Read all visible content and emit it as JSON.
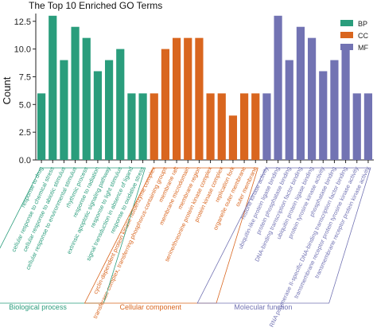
{
  "chart_data": {
    "type": "bar",
    "title": "The Top 10 Enriched GO Terms",
    "ylabel": "Count",
    "xlabel": "",
    "ylim": [
      0,
      13.2
    ],
    "yticks": [
      "0.0",
      "2.5",
      "5.0",
      "7.5",
      "10.0",
      "12.5"
    ],
    "ytick_values": [
      0,
      2.5,
      5,
      7.5,
      10,
      12.5
    ],
    "legend_position": "top-right",
    "colors": {
      "BP": "#2a9d7c",
      "CC": "#d9661f",
      "MF": "#7273b3"
    },
    "series": [
      {
        "name": "BP",
        "group_label": "Biological process",
        "categories": [
          "response to drug",
          "cellular response to chemical stress",
          "cellular response to abiotic stimulus",
          "cellular response to environmental stimulus",
          "rhythmic process",
          "response to radiation",
          "extrinsic apoptotic signaling pathway",
          "response to light stimulus",
          "signal transduction in absence of ligand",
          "response to oxidative stress"
        ],
        "values": [
          6,
          13,
          9,
          12,
          11,
          8,
          9,
          10,
          6,
          6
        ]
      },
      {
        "name": "CC",
        "group_label": "Cellular component",
        "categories": [
          "cyclin-dependent protein kinase holoenzyme complex",
          "transferase complex, transferring phosphorus-containing groups",
          "membrane raft",
          "membrane microdomain",
          "membrane region",
          "serine/threonine protein kinase complex",
          "protein kinase complex",
          "replication fork",
          "organelle outer membrane",
          "outer membrane"
        ],
        "values": [
          6,
          10,
          11,
          11,
          11,
          6,
          6,
          4,
          6,
          6
        ]
      },
      {
        "name": "MF",
        "group_label": "Molecular function",
        "categories": [
          "histone kinase activity",
          "ubiquitin-like protein ligase binding",
          "protein phosphatase binding",
          "DNA-binding transcription factor binding",
          "ubiquitin protein ligase binding",
          "protein tyrosine kinase activity",
          "phosphatase binding",
          "RNA polymerase II-specific DNA-binding transcription factor binding",
          "transmembrane receptor protein tyrosine kinase activity",
          "transmembrane receptor protein kinase activity"
        ],
        "values": [
          6,
          13,
          9,
          12,
          11,
          8,
          9,
          10,
          6,
          6
        ]
      }
    ]
  }
}
